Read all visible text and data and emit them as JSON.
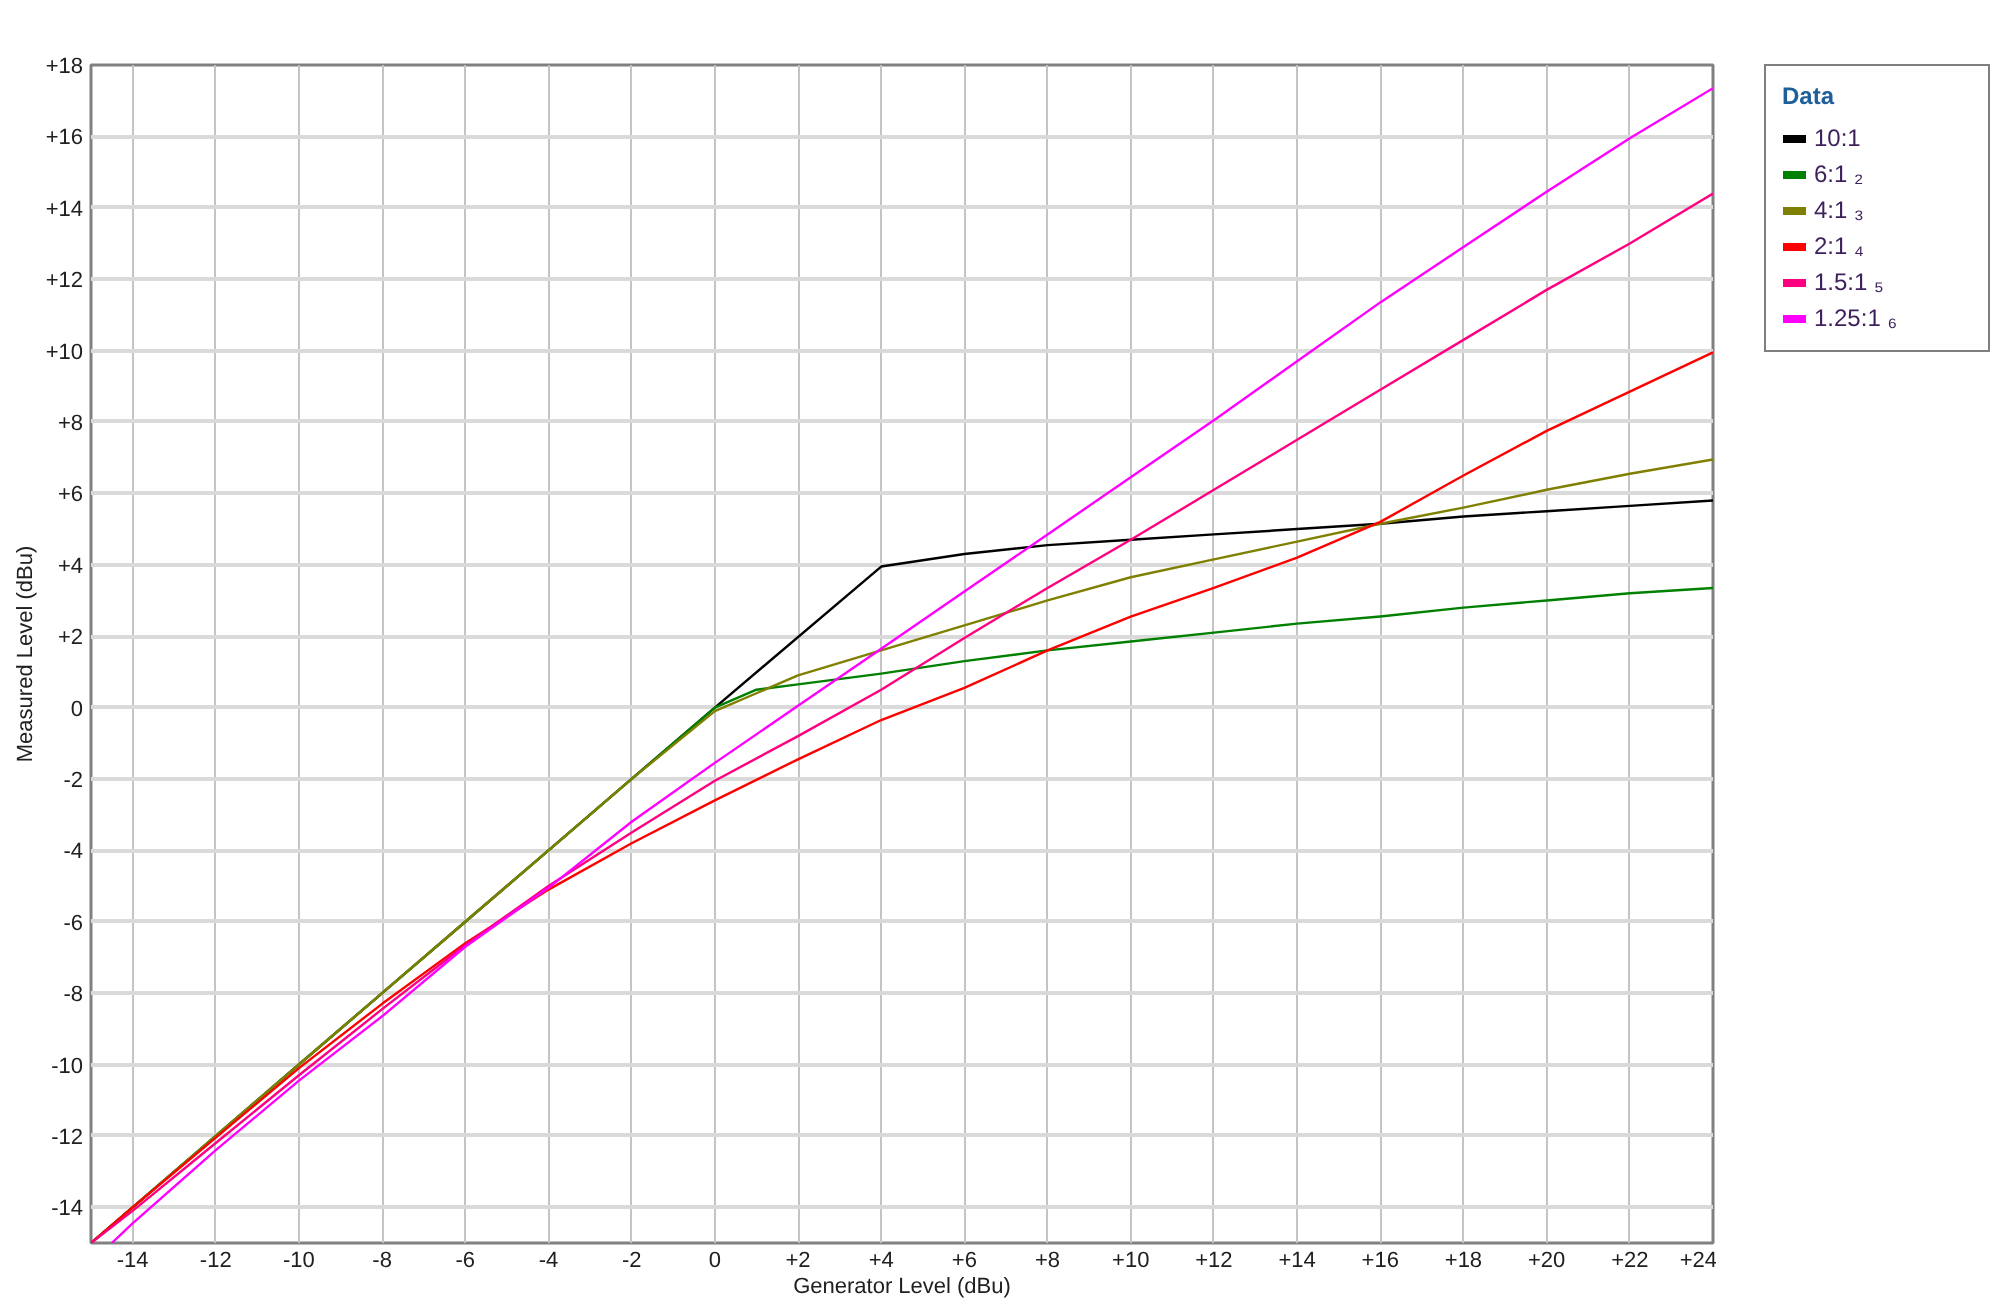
{
  "chart_data": {
    "type": "line",
    "xlabel": "Generator Level (dBu)",
    "ylabel": "Measured Level (dBu)",
    "legend_title": "Data",
    "xlim": [
      -15,
      24
    ],
    "ylim": [
      -15,
      18
    ],
    "xticks": [
      -14,
      -12,
      -10,
      -8,
      -6,
      -4,
      -2,
      0,
      {
        "value": 2,
        "label": "+2"
      },
      {
        "value": 4,
        "label": "+4"
      },
      {
        "value": 6,
        "label": "+6"
      },
      {
        "value": 8,
        "label": "+8"
      },
      {
        "value": 10,
        "label": "+10"
      },
      {
        "value": 12,
        "label": "+12"
      },
      {
        "value": 14,
        "label": "+14"
      },
      {
        "value": 16,
        "label": "+16"
      },
      {
        "value": 18,
        "label": "+18"
      },
      {
        "value": 20,
        "label": "+20"
      },
      {
        "value": 22,
        "label": "+22"
      },
      {
        "value": 24,
        "label": "+24"
      }
    ],
    "yticks": [
      -14,
      -12,
      -10,
      -8,
      -6,
      -4,
      -2,
      0,
      {
        "value": 2,
        "label": "+2"
      },
      {
        "value": 4,
        "label": "+4"
      },
      {
        "value": 6,
        "label": "+6"
      },
      {
        "value": 8,
        "label": "+8"
      },
      {
        "value": 10,
        "label": "+10"
      },
      {
        "value": 12,
        "label": "+12"
      },
      {
        "value": 14,
        "label": "+14"
      },
      {
        "value": 16,
        "label": "+16"
      },
      {
        "value": 18,
        "label": "+18"
      }
    ],
    "grid": true,
    "legend": "top right",
    "series": [
      {
        "name": "10:1",
        "color": "#000000",
        "x": [
          -15,
          -14,
          -12,
          -10,
          -8,
          -6,
          -4,
          -2,
          0,
          4,
          6,
          8,
          10,
          12,
          14,
          16,
          18,
          20,
          22,
          24
        ],
        "values": [
          -15,
          -14,
          -12,
          -10,
          -8,
          -6,
          -4,
          -2,
          0,
          3.95,
          4.3,
          4.55,
          4.7,
          4.85,
          5.0,
          5.15,
          5.35,
          5.5,
          5.65,
          5.8
        ]
      },
      {
        "name": "6:1 ₂",
        "color": "#008000",
        "x": [
          -15,
          -14,
          -12,
          -10,
          -8,
          -6,
          -4,
          -2,
          0,
          1,
          2,
          4,
          6,
          8,
          10,
          12,
          14,
          16,
          18,
          20,
          22,
          24
        ],
        "values": [
          -15,
          -14,
          -12,
          -10,
          -8,
          -6,
          -4,
          -2,
          0,
          0.5,
          0.65,
          0.95,
          1.3,
          1.6,
          1.85,
          2.1,
          2.35,
          2.55,
          2.8,
          3.0,
          3.2,
          3.35
        ]
      },
      {
        "name": "4:1 ₃",
        "color": "#808000",
        "x": [
          -15,
          -14,
          -12,
          -10,
          -8,
          -6,
          -4,
          -2,
          0,
          1,
          2,
          4,
          6,
          8,
          10,
          12,
          14,
          16,
          18,
          20,
          22,
          24
        ],
        "values": [
          -15,
          -14,
          -12,
          -10,
          -8,
          -6,
          -4,
          -2,
          -0.1,
          0.4,
          0.9,
          1.6,
          2.3,
          3.0,
          3.65,
          4.15,
          4.65,
          5.15,
          5.6,
          6.1,
          6.55,
          6.95
        ]
      },
      {
        "name": "2:1 ₄",
        "color": "#ff0000",
        "x": [
          -15,
          -14,
          -12,
          -10,
          -8,
          -6,
          -4,
          -2,
          0,
          2,
          4,
          6,
          8,
          10,
          12,
          14,
          16,
          18,
          20,
          22,
          24
        ],
        "values": [
          -15,
          -14.0,
          -12.05,
          -10.1,
          -8.3,
          -6.6,
          -5.1,
          -3.8,
          -2.6,
          -1.45,
          -0.35,
          0.55,
          1.6,
          2.55,
          3.35,
          4.2,
          5.2,
          6.5,
          7.75,
          8.85,
          9.95
        ]
      },
      {
        "name": "1.5:1 ₅",
        "color": "#ff0080",
        "x": [
          -15,
          -14,
          -12,
          -10,
          -8,
          -6,
          -4,
          -2,
          0,
          2,
          4,
          6,
          8,
          10,
          12,
          14,
          16,
          18,
          20,
          22,
          24
        ],
        "values": [
          -15,
          -14.1,
          -12.2,
          -10.3,
          -8.45,
          -6.65,
          -5.0,
          -3.5,
          -2.05,
          -0.8,
          0.5,
          1.95,
          3.35,
          4.7,
          6.1,
          7.5,
          8.9,
          10.3,
          11.7,
          13.0,
          14.4
        ]
      },
      {
        "name": "1.25:1 ₆",
        "color": "#ff00ff",
        "x": [
          -14.5,
          -14,
          -12,
          -10,
          -8,
          -6,
          -4,
          -2,
          0,
          2,
          4,
          6,
          8,
          10,
          12,
          14,
          16,
          18,
          20,
          22,
          24
        ],
        "values": [
          -15,
          -14.45,
          -12.4,
          -10.45,
          -8.65,
          -6.7,
          -5.05,
          -3.2,
          -1.55,
          0.05,
          1.65,
          3.25,
          4.85,
          6.45,
          8.05,
          9.7,
          11.35,
          12.9,
          14.45,
          15.95,
          17.35
        ]
      }
    ]
  }
}
